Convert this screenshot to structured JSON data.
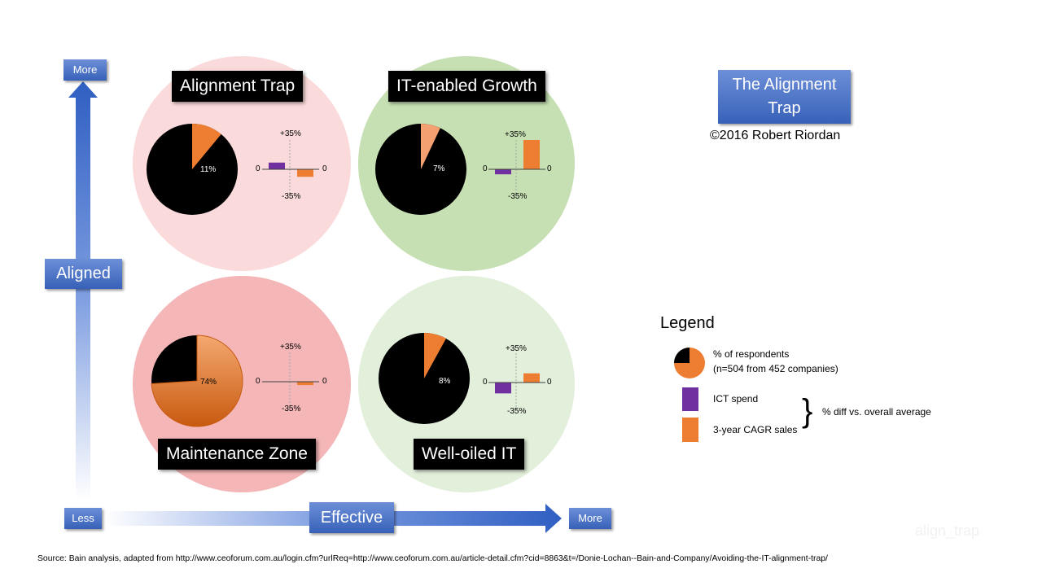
{
  "title_line1": "The Alignment",
  "title_line2": "Trap",
  "copyright": "©2016 Robert Riordan",
  "axis": {
    "y_more": "More",
    "y_label": "Aligned",
    "x_less": "Less",
    "x_label": "Effective",
    "x_more": "More"
  },
  "chart_data": [
    {
      "type": "pie",
      "quadrant": "Alignment Trap",
      "respondents_pct": 11,
      "respondents_label": "11%",
      "ict_spend_pct_diff": 8,
      "cagr_sales_pct_diff": -9,
      "tick_top": "+35%",
      "tick_bottom": "-35%",
      "zero_left": "0",
      "zero_right": "0"
    },
    {
      "type": "pie",
      "quadrant": "IT-enabled Growth",
      "respondents_pct": 7,
      "respondents_label": "7%",
      "ict_spend_pct_diff": -6,
      "cagr_sales_pct_diff": 35,
      "tick_top": "+35%",
      "tick_bottom": "-35%",
      "zero_left": "0",
      "zero_right": "0"
    },
    {
      "type": "pie",
      "quadrant": "Maintenance Zone",
      "respondents_pct": 74,
      "respondents_label": "74%",
      "ict_spend_pct_diff": 0,
      "cagr_sales_pct_diff": -4,
      "tick_top": "+35%",
      "tick_bottom": "-35%",
      "zero_left": "0",
      "zero_right": "0"
    },
    {
      "type": "pie",
      "quadrant": "Well-oiled IT",
      "respondents_pct": 8,
      "respondents_label": "8%",
      "ict_spend_pct_diff": -13,
      "cagr_sales_pct_diff": 11,
      "tick_top": "+35%",
      "tick_bottom": "-35%",
      "zero_left": "0",
      "zero_right": "0"
    }
  ],
  "legend": {
    "heading": "Legend",
    "pie_line1": "% of respondents",
    "pie_line2": "(n=504 from 452 companies)",
    "ict": "ICT spend",
    "cagr": "3-year CAGR sales",
    "brace": "}",
    "diff": "% diff vs. overall average"
  },
  "colors": {
    "pie_dark": "#000000",
    "pie_orange": "#ed7d31",
    "ict": "#7030a0",
    "cagr": "#ed7d31",
    "alignment_trap_bg": "#fadada",
    "it_growth_bg": "#c6e0b4",
    "maintenance_bg": "#f4b6b6",
    "well_oiled_bg": "#e2efda"
  },
  "watermark": "align_trap",
  "source": "Source: Bain analysis, adapted from http://www.ceoforum.com.au/login.cfm?urlReq=http://www.ceoforum.com.au/article-detail.cfm?cid=8863&t=/Donie-Lochan--Bain-and-Company/Avoiding-the-IT-alignment-trap/"
}
